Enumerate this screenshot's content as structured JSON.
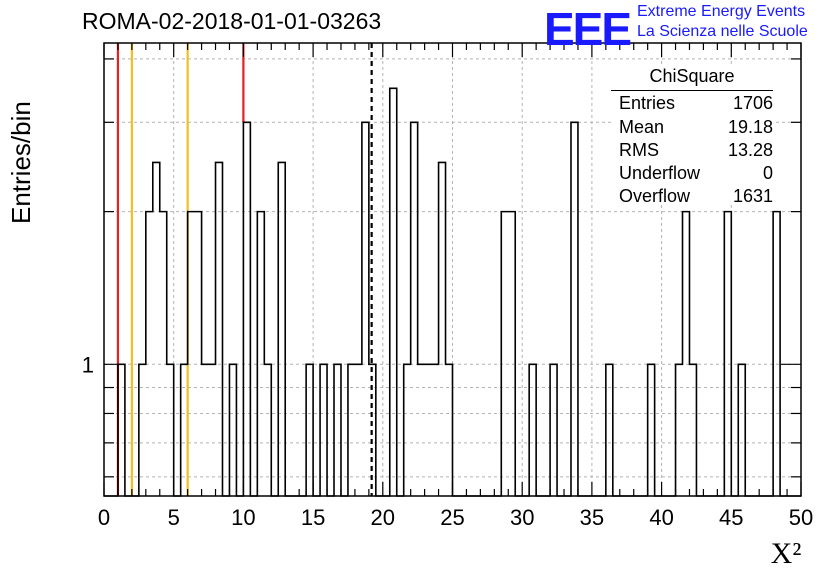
{
  "chart_data": {
    "type": "bar",
    "title": "ROMA-02-2018-01-01-03263",
    "xlabel": "X²",
    "ylabel": "Entries/bin",
    "xlim": [
      0,
      50
    ],
    "ylim": [
      0.55,
      4.3
    ],
    "ylog": true,
    "grid": true,
    "bin_width": 0.5,
    "xticks": [
      "0",
      "5",
      "10",
      "15",
      "20",
      "25",
      "30",
      "35",
      "40",
      "45",
      "50"
    ],
    "yticks": [
      "1"
    ],
    "bins": [
      {
        "x": 1.0,
        "y": 1
      },
      {
        "x": 2.5,
        "y": 1
      },
      {
        "x": 3.0,
        "y": 2
      },
      {
        "x": 3.5,
        "y": 2.5
      },
      {
        "x": 4.0,
        "y": 2
      },
      {
        "x": 4.5,
        "y": 1
      },
      {
        "x": 5.5,
        "y": 1
      },
      {
        "x": 6.0,
        "y": 2
      },
      {
        "x": 6.5,
        "y": 2
      },
      {
        "x": 7.0,
        "y": 1
      },
      {
        "x": 7.5,
        "y": 1
      },
      {
        "x": 8.0,
        "y": 2.5
      },
      {
        "x": 8.5,
        "y": 0.5
      },
      {
        "x": 9.0,
        "y": 1
      },
      {
        "x": 9.5,
        "y": 0.5
      },
      {
        "x": 10.0,
        "y": 3
      },
      {
        "x": 10.5,
        "y": 0.5
      },
      {
        "x": 11.0,
        "y": 2
      },
      {
        "x": 11.5,
        "y": 1
      },
      {
        "x": 12.0,
        "y": 0.5
      },
      {
        "x": 12.5,
        "y": 2.5
      },
      {
        "x": 14.5,
        "y": 1
      },
      {
        "x": 15.5,
        "y": 1
      },
      {
        "x": 16.5,
        "y": 1
      },
      {
        "x": 17.5,
        "y": 1
      },
      {
        "x": 18.0,
        "y": 1
      },
      {
        "x": 18.5,
        "y": 3
      },
      {
        "x": 19.0,
        "y": 1
      },
      {
        "x": 20.5,
        "y": 3.5
      },
      {
        "x": 21.0,
        "y": 0.5
      },
      {
        "x": 21.5,
        "y": 1
      },
      {
        "x": 22.0,
        "y": 3
      },
      {
        "x": 22.5,
        "y": 1
      },
      {
        "x": 23.0,
        "y": 1
      },
      {
        "x": 23.5,
        "y": 1
      },
      {
        "x": 24.0,
        "y": 2.5
      },
      {
        "x": 24.5,
        "y": 1
      },
      {
        "x": 28.5,
        "y": 2
      },
      {
        "x": 29.0,
        "y": 2
      },
      {
        "x": 30.5,
        "y": 1
      },
      {
        "x": 32.0,
        "y": 1
      },
      {
        "x": 33.5,
        "y": 3
      },
      {
        "x": 36.0,
        "y": 1
      },
      {
        "x": 39.0,
        "y": 1
      },
      {
        "x": 41.0,
        "y": 1
      },
      {
        "x": 41.5,
        "y": 2
      },
      {
        "x": 42.0,
        "y": 1
      },
      {
        "x": 44.5,
        "y": 2
      },
      {
        "x": 45.0,
        "y": 0.5
      },
      {
        "x": 45.5,
        "y": 1
      },
      {
        "x": 48.0,
        "y": 2
      }
    ],
    "vertical_lines": [
      {
        "x": 1.0,
        "color": "#e82020",
        "style": "solid"
      },
      {
        "x": 2.0,
        "color": "#f0c020",
        "style": "solid"
      },
      {
        "x": 6.0,
        "color": "#f0c020",
        "style": "solid"
      },
      {
        "x": 10.0,
        "color": "#e82020",
        "style": "solid"
      },
      {
        "x": 19.2,
        "color": "#000000",
        "style": "dashed"
      }
    ],
    "stats_box": {
      "placement": "top-right",
      "title": "ChiSquare",
      "rows": [
        {
          "key": "Entries",
          "value": "1706"
        },
        {
          "key": "Mean",
          "value": "19.18"
        },
        {
          "key": "RMS",
          "value": "13.28"
        },
        {
          "key": "Underflow",
          "value": "0"
        },
        {
          "key": "Overflow",
          "value": "1631"
        }
      ]
    }
  },
  "logo": {
    "mark": "EEE",
    "line1": "Extreme Energy Events",
    "line2": "La Scienza nelle Scuole",
    "color": "#1a1aff"
  }
}
